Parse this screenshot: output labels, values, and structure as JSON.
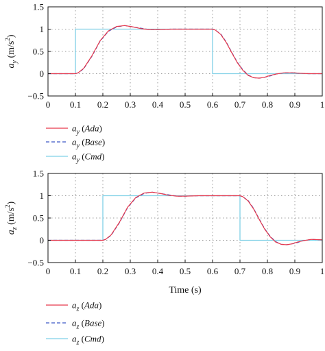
{
  "colors": {
    "ada": "#e8374a",
    "base": "#3a56c5",
    "cmd": "#7fd0e6",
    "grid": "#9a9a9a",
    "axis": "#111111"
  },
  "chart_data": [
    {
      "type": "line",
      "title": "",
      "xlabel": "",
      "ylabel": {
        "sym": "a",
        "sub": "y",
        "unit": " (m/s",
        "sup": "2",
        "close": ")"
      },
      "xlim": [
        0,
        1
      ],
      "ylim": [
        -0.5,
        1.5
      ],
      "xticks": [
        "0",
        "0.1",
        "0.2",
        "0.3",
        "0.4",
        "0.5",
        "0.6",
        "0.7",
        "0.8",
        "0.9",
        "1"
      ],
      "xtick_values": [
        0,
        0.1,
        0.2,
        0.3,
        0.4,
        0.5,
        0.6,
        0.7,
        0.8,
        0.9,
        1
      ],
      "yticks": [
        "1.5",
        "1",
        "0.5",
        "0",
        "−0.5"
      ],
      "ytick_values": [
        1.5,
        1,
        0.5,
        0,
        -0.5
      ],
      "grid": true,
      "legend_position": "below",
      "legend": [
        {
          "sym": "a",
          "sub": "y",
          "name": "Ada"
        },
        {
          "sym": "a",
          "sub": "y",
          "name": "Base"
        },
        {
          "sym": "a",
          "sub": "y",
          "name": "Cmd"
        }
      ],
      "series": [
        {
          "key": "ada",
          "style": "solid",
          "x": [
            0,
            0.1,
            0.11,
            0.13,
            0.16,
            0.19,
            0.22,
            0.25,
            0.28,
            0.31,
            0.34,
            0.37,
            0.4,
            0.45,
            0.5,
            0.55,
            0.6,
            0.61,
            0.63,
            0.65,
            0.67,
            0.69,
            0.71,
            0.73,
            0.75,
            0.77,
            0.79,
            0.81,
            0.83,
            0.86,
            0.89,
            0.92,
            0.95,
            1
          ],
          "y": [
            0,
            0,
            0.02,
            0.12,
            0.4,
            0.74,
            0.96,
            1.06,
            1.08,
            1.05,
            1.01,
            0.99,
            0.99,
            1.0,
            1.0,
            1.0,
            1.0,
            0.98,
            0.88,
            0.7,
            0.47,
            0.25,
            0.08,
            -0.04,
            -0.09,
            -0.1,
            -0.08,
            -0.04,
            -0.01,
            0.02,
            0.02,
            0.01,
            0.0,
            0.0
          ]
        },
        {
          "key": "base",
          "style": "dashed",
          "x": [
            0,
            0.1,
            0.11,
            0.13,
            0.16,
            0.19,
            0.22,
            0.25,
            0.28,
            0.31,
            0.34,
            0.37,
            0.4,
            0.45,
            0.5,
            0.55,
            0.6,
            0.61,
            0.63,
            0.65,
            0.67,
            0.69,
            0.71,
            0.73,
            0.75,
            0.77,
            0.79,
            0.81,
            0.83,
            0.86,
            0.89,
            0.92,
            0.95,
            1
          ],
          "y": [
            0,
            0,
            0.02,
            0.11,
            0.39,
            0.73,
            0.95,
            1.05,
            1.08,
            1.05,
            1.02,
            0.99,
            0.99,
            1.0,
            1.0,
            1.0,
            1.0,
            0.98,
            0.89,
            0.71,
            0.48,
            0.26,
            0.09,
            -0.03,
            -0.09,
            -0.1,
            -0.08,
            -0.05,
            -0.01,
            0.02,
            0.02,
            0.01,
            0.0,
            0.0
          ]
        },
        {
          "key": "cmd",
          "style": "solid",
          "x": [
            0,
            0.1,
            0.1,
            0.6,
            0.6,
            1
          ],
          "y": [
            0,
            0,
            1,
            1,
            0,
            0
          ]
        }
      ]
    },
    {
      "type": "line",
      "title": "",
      "xlabel": "Time (s)",
      "ylabel": {
        "sym": "a",
        "sub": "z",
        "unit": " (m/s",
        "sup": "2",
        "close": ")"
      },
      "xlim": [
        0,
        1
      ],
      "ylim": [
        -0.5,
        1.5
      ],
      "xticks": [
        "0",
        "0.1",
        "0.2",
        "0.3",
        "0.4",
        "0.5",
        "0.6",
        "0.7",
        "0.8",
        "0.9",
        "1"
      ],
      "xtick_values": [
        0,
        0.1,
        0.2,
        0.3,
        0.4,
        0.5,
        0.6,
        0.7,
        0.8,
        0.9,
        1
      ],
      "yticks": [
        "1.5",
        "1",
        "0.5",
        "0",
        "−0.5"
      ],
      "ytick_values": [
        1.5,
        1,
        0.5,
        0,
        -0.5
      ],
      "grid": true,
      "legend_position": "below",
      "legend": [
        {
          "sym": "a",
          "sub": "z",
          "name": "Ada"
        },
        {
          "sym": "a",
          "sub": "z",
          "name": "Base"
        },
        {
          "sym": "a",
          "sub": "z",
          "name": "Cmd"
        }
      ],
      "series": [
        {
          "key": "ada",
          "style": "solid",
          "x": [
            0,
            0.2,
            0.21,
            0.23,
            0.26,
            0.29,
            0.32,
            0.35,
            0.38,
            0.41,
            0.44,
            0.47,
            0.5,
            0.55,
            0.6,
            0.65,
            0.7,
            0.71,
            0.73,
            0.75,
            0.77,
            0.79,
            0.81,
            0.83,
            0.85,
            0.87,
            0.89,
            0.91,
            0.93,
            0.96,
            1
          ],
          "y": [
            0,
            0,
            0.02,
            0.12,
            0.4,
            0.74,
            0.96,
            1.06,
            1.08,
            1.05,
            1.01,
            0.99,
            0.99,
            1.0,
            1.0,
            1.0,
            1.0,
            0.98,
            0.88,
            0.7,
            0.47,
            0.25,
            0.08,
            -0.04,
            -0.09,
            -0.1,
            -0.08,
            -0.04,
            -0.01,
            0.02,
            0.01
          ]
        },
        {
          "key": "base",
          "style": "dashed",
          "x": [
            0,
            0.2,
            0.21,
            0.23,
            0.26,
            0.29,
            0.32,
            0.35,
            0.38,
            0.41,
            0.44,
            0.47,
            0.5,
            0.55,
            0.6,
            0.65,
            0.7,
            0.71,
            0.73,
            0.75,
            0.77,
            0.79,
            0.81,
            0.83,
            0.85,
            0.87,
            0.89,
            0.91,
            0.93,
            0.96,
            1
          ],
          "y": [
            0,
            0,
            0.02,
            0.11,
            0.39,
            0.73,
            0.95,
            1.05,
            1.08,
            1.05,
            1.02,
            0.99,
            0.99,
            1.0,
            1.0,
            1.0,
            1.0,
            0.98,
            0.89,
            0.71,
            0.48,
            0.26,
            0.09,
            -0.03,
            -0.09,
            -0.1,
            -0.08,
            -0.05,
            -0.01,
            0.02,
            0.01
          ]
        },
        {
          "key": "cmd",
          "style": "solid",
          "x": [
            0,
            0.2,
            0.2,
            0.7,
            0.7,
            1
          ],
          "y": [
            0,
            0,
            1,
            1,
            0,
            0
          ]
        }
      ]
    }
  ]
}
